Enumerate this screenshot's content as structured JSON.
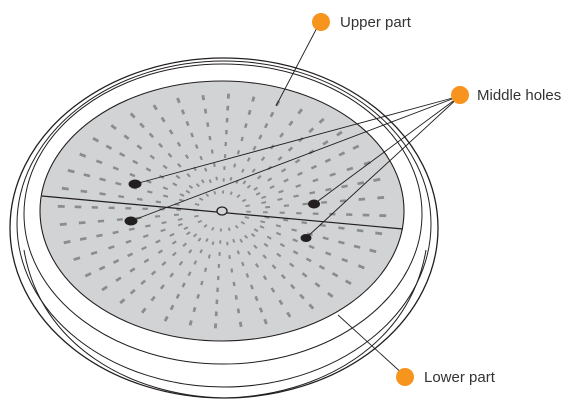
{
  "labels": {
    "upper": "Upper part",
    "middle": "Middle holes",
    "lower": "Lower part"
  },
  "colors": {
    "marker": "#F7941D",
    "plate": "#D1D3D4",
    "dash": "#8A8C8E",
    "outline": "#231F20",
    "hole": "#231F20"
  }
}
